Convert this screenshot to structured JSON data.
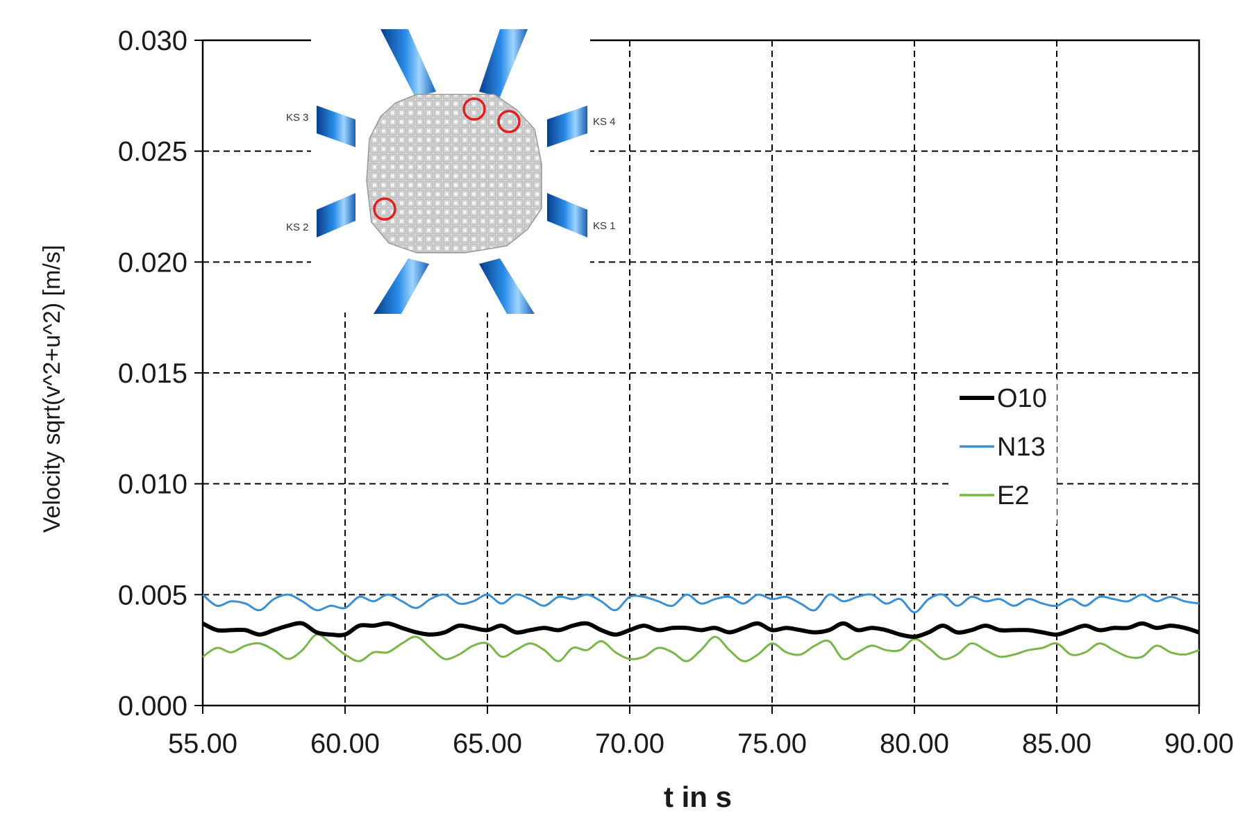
{
  "chart_data": {
    "type": "line",
    "xlabel": "t in s",
    "ylabel": "Velocity sqrt(v^2+u^2) [m/s]",
    "xlim": [
      55,
      90
    ],
    "ylim": [
      0,
      0.03
    ],
    "x_ticks": [
      "55.00",
      "60.00",
      "65.00",
      "70.00",
      "75.00",
      "80.00",
      "85.00",
      "90.00"
    ],
    "y_ticks": [
      "0.000",
      "0.005",
      "0.010",
      "0.015",
      "0.020",
      "0.025",
      "0.030"
    ],
    "grid": true,
    "legend_position": "center-right",
    "x": [
      55.0,
      55.5,
      56.0,
      56.5,
      57.0,
      57.5,
      58.0,
      58.5,
      59.0,
      59.5,
      60.0,
      60.5,
      61.0,
      61.5,
      62.0,
      62.5,
      63.0,
      63.5,
      64.0,
      64.5,
      65.0,
      65.5,
      66.0,
      66.5,
      67.0,
      67.5,
      68.0,
      68.5,
      69.0,
      69.5,
      70.0,
      70.5,
      71.0,
      71.5,
      72.0,
      72.5,
      73.0,
      73.5,
      74.0,
      74.5,
      75.0,
      75.5,
      76.0,
      76.5,
      77.0,
      77.5,
      78.0,
      78.5,
      79.0,
      79.5,
      80.0,
      80.5,
      81.0,
      81.5,
      82.0,
      82.5,
      83.0,
      83.5,
      84.0,
      84.5,
      85.0,
      85.5,
      86.0,
      86.5,
      87.0,
      87.5,
      88.0,
      88.5,
      89.0,
      89.5,
      90.0
    ],
    "series": [
      {
        "name": "O10",
        "color": "#000000",
        "values": [
          0.0037,
          0.0034,
          0.0034,
          0.0034,
          0.0032,
          0.0034,
          0.0036,
          0.0037,
          0.0033,
          0.0032,
          0.0032,
          0.0036,
          0.0036,
          0.0037,
          0.0035,
          0.0033,
          0.0032,
          0.0033,
          0.0036,
          0.0035,
          0.0034,
          0.0036,
          0.0033,
          0.0034,
          0.0035,
          0.0034,
          0.0036,
          0.0037,
          0.0034,
          0.0032,
          0.0034,
          0.0036,
          0.0034,
          0.0035,
          0.0035,
          0.0034,
          0.0035,
          0.0033,
          0.0035,
          0.0037,
          0.0034,
          0.0035,
          0.0034,
          0.0033,
          0.0034,
          0.0037,
          0.0034,
          0.0035,
          0.0034,
          0.0032,
          0.0031,
          0.0033,
          0.0036,
          0.0033,
          0.0034,
          0.0036,
          0.0034,
          0.0034,
          0.0034,
          0.0033,
          0.0032,
          0.0034,
          0.0036,
          0.0034,
          0.0035,
          0.0035,
          0.0037,
          0.0035,
          0.0036,
          0.0035,
          0.0033
        ]
      },
      {
        "name": "N13",
        "color": "#3b8fd4",
        "values": [
          0.005,
          0.0045,
          0.0047,
          0.0046,
          0.0043,
          0.0048,
          0.005,
          0.0047,
          0.0043,
          0.0045,
          0.0044,
          0.0049,
          0.0047,
          0.005,
          0.0047,
          0.0044,
          0.0048,
          0.005,
          0.0046,
          0.0047,
          0.005,
          0.0046,
          0.005,
          0.0048,
          0.0045,
          0.0049,
          0.0048,
          0.005,
          0.0047,
          0.0043,
          0.0049,
          0.0049,
          0.0047,
          0.0045,
          0.005,
          0.0046,
          0.0048,
          0.0049,
          0.0046,
          0.005,
          0.0048,
          0.0049,
          0.0046,
          0.0043,
          0.005,
          0.0047,
          0.0049,
          0.005,
          0.0046,
          0.0048,
          0.0042,
          0.0048,
          0.005,
          0.0045,
          0.0049,
          0.0047,
          0.0048,
          0.0045,
          0.0048,
          0.0046,
          0.0045,
          0.0048,
          0.0045,
          0.0049,
          0.0048,
          0.0047,
          0.005,
          0.0047,
          0.0049,
          0.0047,
          0.0046
        ]
      },
      {
        "name": "E2",
        "color": "#7ab648",
        "values": [
          0.0022,
          0.0026,
          0.0024,
          0.0027,
          0.0028,
          0.0025,
          0.0021,
          0.0025,
          0.0032,
          0.0028,
          0.0023,
          0.002,
          0.0024,
          0.0024,
          0.0028,
          0.0031,
          0.0026,
          0.0021,
          0.0023,
          0.0027,
          0.0028,
          0.0022,
          0.0025,
          0.0028,
          0.0025,
          0.002,
          0.0026,
          0.0025,
          0.0029,
          0.0024,
          0.0021,
          0.0022,
          0.0026,
          0.0024,
          0.002,
          0.0025,
          0.0031,
          0.0025,
          0.002,
          0.0023,
          0.0028,
          0.0024,
          0.0023,
          0.0027,
          0.0029,
          0.0021,
          0.0024,
          0.0027,
          0.0025,
          0.0025,
          0.003,
          0.0026,
          0.0021,
          0.0023,
          0.0028,
          0.0025,
          0.0022,
          0.0023,
          0.0025,
          0.0026,
          0.0028,
          0.0023,
          0.0024,
          0.0028,
          0.0025,
          0.0022,
          0.0022,
          0.0027,
          0.0024,
          0.0023,
          0.0025
        ]
      }
    ],
    "inset": {
      "labels": [
        "KS 3",
        "KS 4",
        "KS 2",
        "KS 1"
      ],
      "pipe_color": "#1e7ad6",
      "marker_color": "#e02020"
    }
  }
}
